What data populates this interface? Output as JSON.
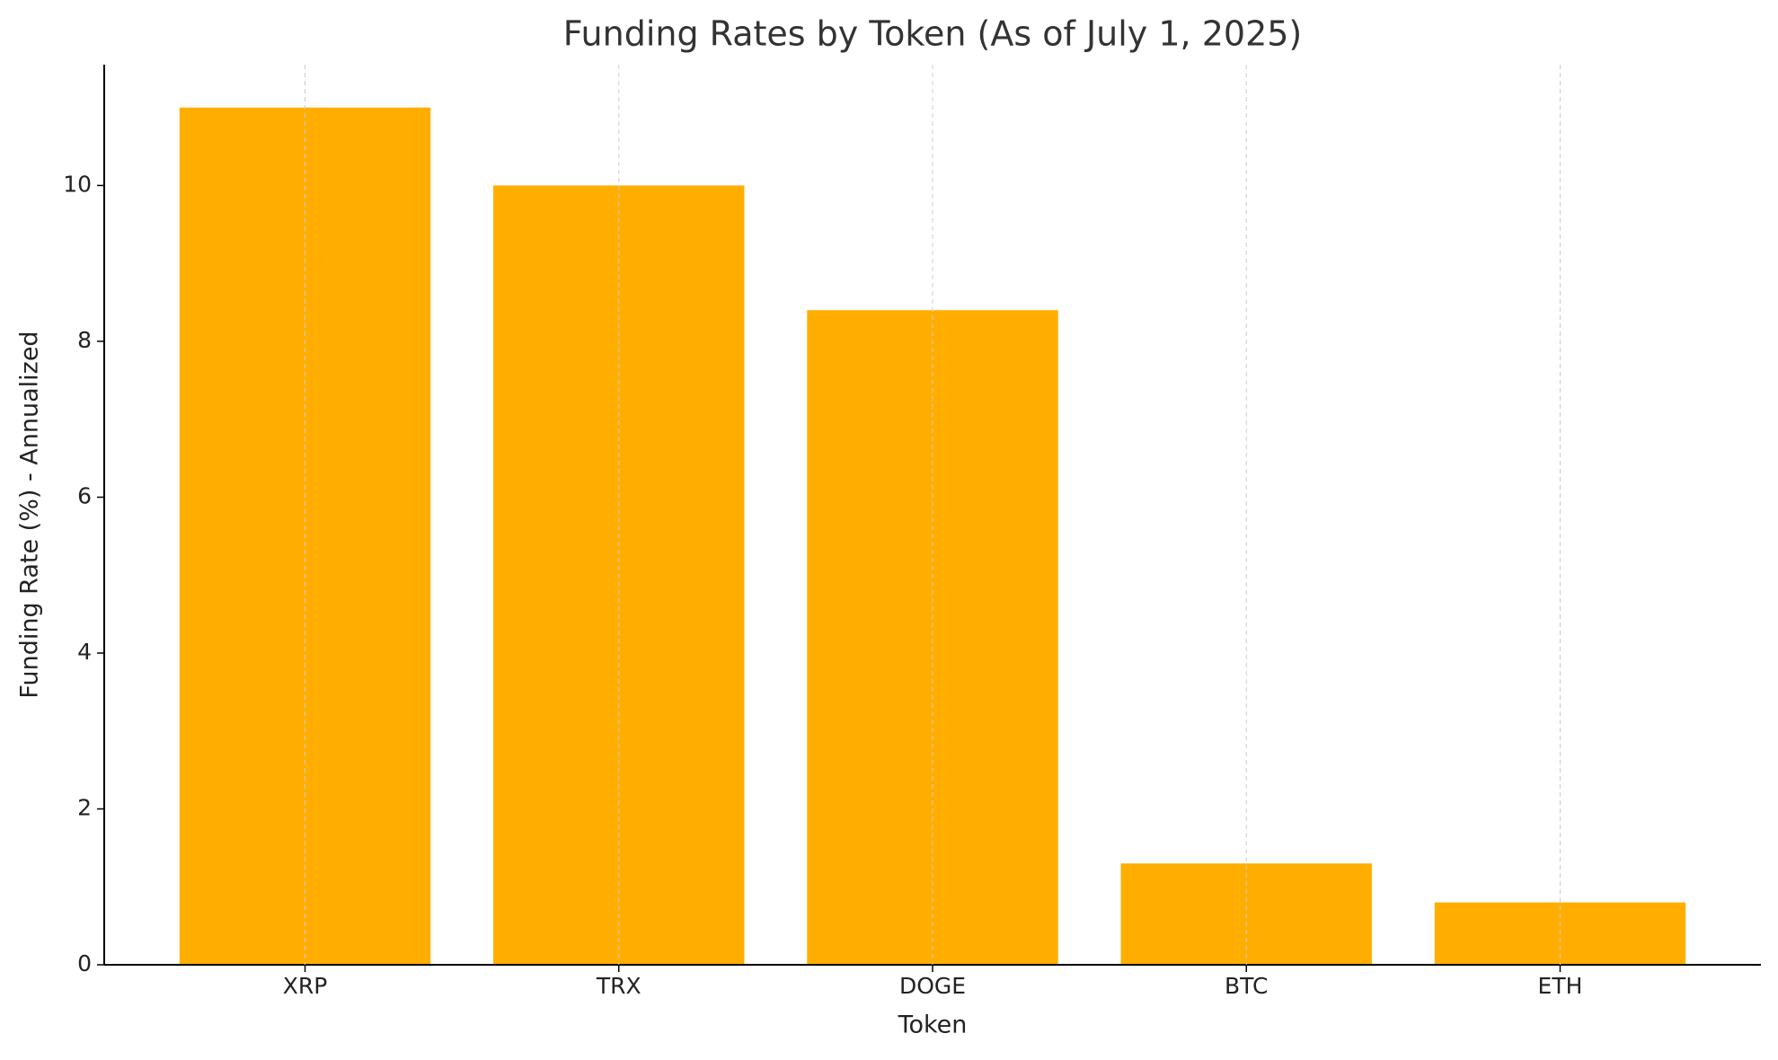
{
  "chart_data": {
    "type": "bar",
    "title": "Funding Rates by Token (As of July 1, 2025)",
    "x_label": "Token",
    "y_label": "Funding Rate (%) - Annualized",
    "categories": [
      "XRP",
      "TRX",
      "DOGE",
      "BTC",
      "ETH"
    ],
    "values": [
      11,
      10,
      8.4,
      1.3,
      0.8
    ],
    "color": "#ffae00",
    "ylim": [
      0,
      11.55
    ],
    "yticks": [
      0,
      2,
      4,
      6,
      8,
      10
    ],
    "grid": "x"
  }
}
